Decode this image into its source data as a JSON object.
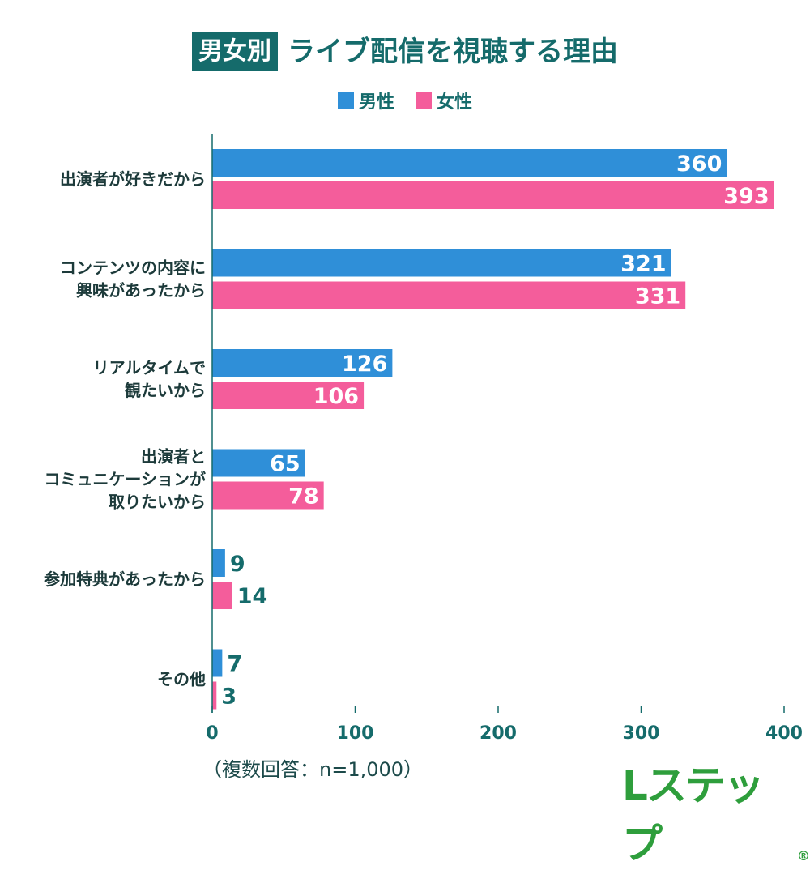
{
  "title": {
    "badge": "男女別",
    "main": "ライブ配信を視聴する理由"
  },
  "legend": [
    {
      "label": "男性",
      "color": "#2f8fd8"
    },
    {
      "label": "女性",
      "color": "#f45d9b"
    }
  ],
  "note": "（複数回答：n=1,000）",
  "logo": {
    "text": "Lステップ",
    "mark": "®"
  },
  "colors": {
    "accent": "#156b6b",
    "male": "#2f8fd8",
    "female": "#f45d9b"
  },
  "chart_data": {
    "type": "bar",
    "orientation": "horizontal",
    "categories": [
      [
        "出演者が好きだから"
      ],
      [
        "コンテンツの内容に",
        "興味があったから"
      ],
      [
        "リアルタイムで",
        "観たいから"
      ],
      [
        "出演者と",
        "コミュニケーションが",
        "取りたいから"
      ],
      [
        "参加特典があったから"
      ],
      [
        "その他"
      ]
    ],
    "series": [
      {
        "name": "男性",
        "values": [
          360,
          321,
          126,
          65,
          9,
          7
        ]
      },
      {
        "name": "女性",
        "values": [
          393,
          331,
          106,
          78,
          14,
          3
        ]
      }
    ],
    "xlim": [
      0,
      400
    ],
    "xticks": [
      "0",
      "100",
      "200",
      "300",
      "400"
    ],
    "xlabel": "",
    "ylabel": ""
  }
}
